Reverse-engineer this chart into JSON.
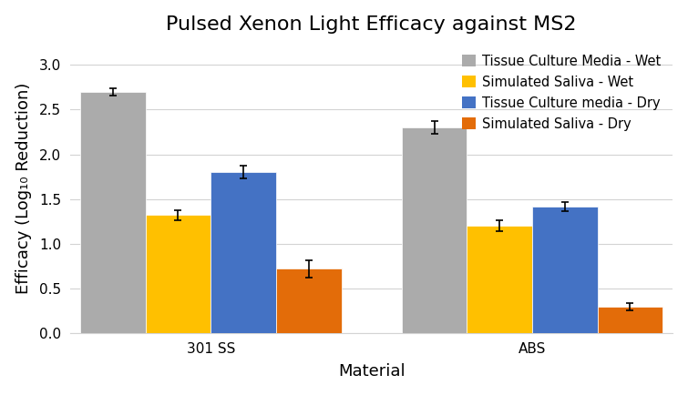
{
  "title": "Pulsed Xenon Light Efficacy against MS2",
  "xlabel": "Material",
  "ylabel": "Efficacy (Log₁₀ Reduction)",
  "categories": [
    "301 SS",
    "ABS"
  ],
  "series": [
    {
      "label": "Tissue Culture Media - Wet",
      "color": "#ABABAB",
      "hatch": "",
      "values": [
        2.7,
        2.3
      ],
      "errors": [
        0.04,
        0.07
      ]
    },
    {
      "label": "Simulated Saliva - Wet",
      "color": "#FFC000",
      "hatch": "",
      "values": [
        1.32,
        1.2
      ],
      "errors": [
        0.06,
        0.06
      ]
    },
    {
      "label": "Tissue Culture media - Dry",
      "color": "#4472C4",
      "hatch": "",
      "values": [
        1.8,
        1.42
      ],
      "errors": [
        0.07,
        0.05
      ]
    },
    {
      "label": "Simulated Saliva - Dry",
      "color": "#E36C09",
      "hatch": "",
      "values": [
        0.72,
        0.3
      ],
      "errors": [
        0.1,
        0.04
      ]
    }
  ],
  "ylim": [
    0,
    3.25
  ],
  "yticks": [
    0.0,
    0.5,
    1.0,
    1.5,
    2.0,
    2.5,
    3.0
  ],
  "bar_width": 0.13,
  "group_centers": [
    0.28,
    0.92
  ],
  "background_color": "#ffffff",
  "title_fontsize": 16,
  "axis_label_fontsize": 13,
  "tick_fontsize": 11,
  "legend_fontsize": 10.5
}
